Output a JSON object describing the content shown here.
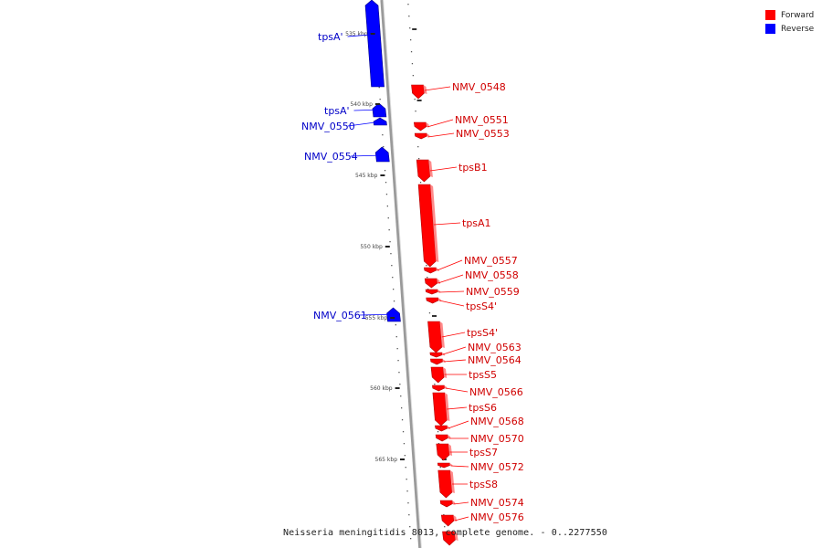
{
  "caption": "Neisseria meningitidis 8013, complete genome. - 0..2277550",
  "colors": {
    "forward": "#ff0000",
    "reverse": "#0000ff",
    "backbone": "#aaaaaa"
  },
  "legend": [
    {
      "label": "Forward",
      "color": "#ff0000"
    },
    {
      "label": "Reverse",
      "color": "#0000ff"
    }
  ],
  "scale_labels": [
    "535 kbp",
    "540 kbp",
    "545 kbp",
    "550 kbp",
    "555 kbp",
    "560 kbp",
    "565 kbp"
  ],
  "genes_left": [
    "tpsA'",
    "tpsA'",
    "NMV_0550",
    "NMV_0554",
    "NMV_0561"
  ],
  "genes_right": [
    "NMV_0548",
    "NMV_0551",
    "NMV_0553",
    "tpsB1",
    "tpsA1",
    "NMV_0557",
    "NMV_0558",
    "NMV_0559",
    "tpsS4'",
    "tpsS4'",
    "NMV_0563",
    "NMV_0564",
    "tpsS5",
    "NMV_0566",
    "tpsS6",
    "NMV_0568",
    "NMV_0570",
    "tpsS7",
    "NMV_0572",
    "tpsS8",
    "NMV_0574",
    "NMV_0576"
  ]
}
